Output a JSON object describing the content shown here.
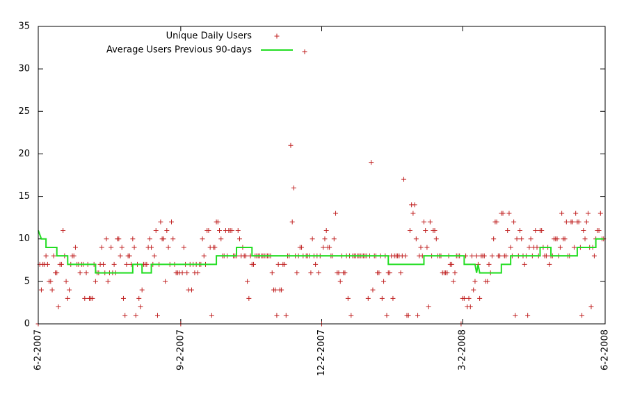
{
  "chart_data": {
    "type": "scatter",
    "xlim": [
      "2007-06-02",
      "2008-06-02"
    ],
    "xticks": [
      {
        "value": "2007-06-02",
        "label": "6-2-2007"
      },
      {
        "value": "2007-09-02",
        "label": "9-2-2007"
      },
      {
        "value": "2007-12-02",
        "label": "12-2-2007"
      },
      {
        "value": "2008-03-02",
        "label": "3-2-2008"
      },
      {
        "value": "2008-06-02",
        "label": "6-2-2008"
      }
    ],
    "ylim": [
      0,
      35
    ],
    "yticks": [
      0,
      5,
      10,
      15,
      20,
      25,
      30,
      35
    ],
    "grid": false,
    "legend_position": "top-left",
    "series": [
      {
        "name": "Unique Daily Users",
        "type": "scatter",
        "color": "#c02020",
        "x": [
          "2007-06-02",
          "2007-06-03",
          "2007-06-04",
          "2007-06-05",
          "2007-06-06",
          "2007-06-07",
          "2007-06-08",
          "2007-06-09",
          "2007-06-10",
          "2007-06-11",
          "2007-06-12",
          "2007-06-13",
          "2007-06-14",
          "2007-06-15",
          "2007-06-16",
          "2007-06-17",
          "2007-06-18",
          "2007-06-19",
          "2007-06-20",
          "2007-06-21",
          "2007-06-22",
          "2007-06-23",
          "2007-06-24",
          "2007-06-25",
          "2007-06-26",
          "2007-06-27",
          "2007-06-28",
          "2007-06-29",
          "2007-06-30",
          "2007-07-01",
          "2007-07-02",
          "2007-07-03",
          "2007-07-04",
          "2007-07-05",
          "2007-07-06",
          "2007-07-07",
          "2007-07-08",
          "2007-07-09",
          "2007-07-10",
          "2007-07-11",
          "2007-07-12",
          "2007-07-13",
          "2007-07-14",
          "2007-07-15",
          "2007-07-16",
          "2007-07-17",
          "2007-07-18",
          "2007-07-19",
          "2007-07-20",
          "2007-07-21",
          "2007-07-22",
          "2007-07-23",
          "2007-07-24",
          "2007-07-25",
          "2007-07-26",
          "2007-07-27",
          "2007-07-28",
          "2007-07-29",
          "2007-07-30",
          "2007-07-31",
          "2007-08-01",
          "2007-08-02",
          "2007-08-03",
          "2007-08-04",
          "2007-08-05",
          "2007-08-06",
          "2007-08-07",
          "2007-08-08",
          "2007-08-09",
          "2007-08-10",
          "2007-08-11",
          "2007-08-12",
          "2007-08-13",
          "2007-08-14",
          "2007-08-15",
          "2007-08-16",
          "2007-08-17",
          "2007-08-18",
          "2007-08-19",
          "2007-08-20",
          "2007-08-21",
          "2007-08-22",
          "2007-08-23",
          "2007-08-24",
          "2007-08-25",
          "2007-08-26",
          "2007-08-27",
          "2007-08-28",
          "2007-08-29",
          "2007-08-30",
          "2007-08-31",
          "2007-09-01",
          "2007-09-02",
          "2007-09-03",
          "2007-09-04",
          "2007-09-05",
          "2007-09-06",
          "2007-09-07",
          "2007-09-08",
          "2007-09-09",
          "2007-09-10",
          "2007-09-11",
          "2007-09-12",
          "2007-09-13",
          "2007-09-14",
          "2007-09-15",
          "2007-09-16",
          "2007-09-17",
          "2007-09-18",
          "2007-09-19",
          "2007-09-20",
          "2007-09-21",
          "2007-09-22",
          "2007-09-23",
          "2007-09-24",
          "2007-09-25",
          "2007-09-26",
          "2007-09-27",
          "2007-09-28",
          "2007-09-29",
          "2007-09-30",
          "2007-10-01",
          "2007-10-02",
          "2007-10-03",
          "2007-10-04",
          "2007-10-05",
          "2007-10-06",
          "2007-10-07",
          "2007-10-08",
          "2007-10-09",
          "2007-10-10",
          "2007-10-11",
          "2007-10-12",
          "2007-10-13",
          "2007-10-14",
          "2007-10-15",
          "2007-10-16",
          "2007-10-17",
          "2007-10-18",
          "2007-10-19",
          "2007-10-20",
          "2007-10-21",
          "2007-10-22",
          "2007-10-23",
          "2007-10-24",
          "2007-10-25",
          "2007-10-26",
          "2007-10-27",
          "2007-10-28",
          "2007-10-29",
          "2007-10-30",
          "2007-10-31",
          "2007-11-01",
          "2007-11-02",
          "2007-11-03",
          "2007-11-04",
          "2007-11-05",
          "2007-11-06",
          "2007-11-07",
          "2007-11-08",
          "2007-11-09",
          "2007-11-10",
          "2007-11-11",
          "2007-11-12",
          "2007-11-13",
          "2007-11-14",
          "2007-11-15",
          "2007-11-16",
          "2007-11-17",
          "2007-11-18",
          "2007-11-19",
          "2007-11-20",
          "2007-11-21",
          "2007-11-22",
          "2007-11-23",
          "2007-11-24",
          "2007-11-25",
          "2007-11-26",
          "2007-11-27",
          "2007-11-28",
          "2007-11-29",
          "2007-11-30",
          "2007-12-01",
          "2007-12-02",
          "2007-12-03",
          "2007-12-04",
          "2007-12-05",
          "2007-12-06",
          "2007-12-07",
          "2007-12-08",
          "2007-12-09",
          "2007-12-10",
          "2007-12-11",
          "2007-12-12",
          "2007-12-13",
          "2007-12-14",
          "2007-12-15",
          "2007-12-16",
          "2007-12-17",
          "2007-12-18",
          "2007-12-19",
          "2007-12-20",
          "2007-12-21",
          "2007-12-22",
          "2007-12-23",
          "2007-12-24",
          "2007-12-25",
          "2007-12-26",
          "2007-12-27",
          "2007-12-28",
          "2007-12-29",
          "2007-12-30",
          "2007-12-31",
          "2008-01-01",
          "2008-01-02",
          "2008-01-03",
          "2008-01-04",
          "2008-01-05",
          "2008-01-06",
          "2008-01-07",
          "2008-01-08",
          "2008-01-09",
          "2008-01-10",
          "2008-01-11",
          "2008-01-12",
          "2008-01-13",
          "2008-01-14",
          "2008-01-15",
          "2008-01-16",
          "2008-01-17",
          "2008-01-18",
          "2008-01-19",
          "2008-01-20",
          "2008-01-21",
          "2008-01-22",
          "2008-01-23",
          "2008-01-24",
          "2008-01-25",
          "2008-01-26",
          "2008-01-27",
          "2008-01-28",
          "2008-01-29",
          "2008-01-30",
          "2008-01-31",
          "2008-02-01",
          "2008-02-02",
          "2008-02-03",
          "2008-02-04",
          "2008-02-05",
          "2008-02-06",
          "2008-02-07",
          "2008-02-08",
          "2008-02-09",
          "2008-02-10",
          "2008-02-11",
          "2008-02-12",
          "2008-02-13",
          "2008-02-14",
          "2008-02-15",
          "2008-02-16",
          "2008-02-17",
          "2008-02-18",
          "2008-02-19",
          "2008-02-20",
          "2008-02-21",
          "2008-02-22",
          "2008-02-23",
          "2008-02-24",
          "2008-02-25",
          "2008-02-26",
          "2008-02-27",
          "2008-02-28",
          "2008-02-29",
          "2008-03-01",
          "2008-03-02",
          "2008-03-03",
          "2008-03-04",
          "2008-03-05",
          "2008-03-06",
          "2008-03-07",
          "2008-03-08",
          "2008-03-09",
          "2008-03-10",
          "2008-03-11",
          "2008-03-12",
          "2008-03-13",
          "2008-03-14",
          "2008-03-15",
          "2008-03-16",
          "2008-03-17",
          "2008-03-18",
          "2008-03-19",
          "2008-03-20",
          "2008-03-21",
          "2008-03-22",
          "2008-03-23",
          "2008-03-24",
          "2008-03-25",
          "2008-03-26",
          "2008-03-27",
          "2008-03-28",
          "2008-03-29",
          "2008-03-30",
          "2008-03-31",
          "2008-04-01",
          "2008-04-02",
          "2008-04-03",
          "2008-04-04",
          "2008-04-05",
          "2008-04-06",
          "2008-04-07",
          "2008-04-08",
          "2008-04-09",
          "2008-04-10",
          "2008-04-11",
          "2008-04-12",
          "2008-04-13",
          "2008-04-14",
          "2008-04-15",
          "2008-04-16",
          "2008-04-17",
          "2008-04-18",
          "2008-04-19",
          "2008-04-20",
          "2008-04-21",
          "2008-04-22",
          "2008-04-23",
          "2008-04-24",
          "2008-04-25",
          "2008-04-26",
          "2008-04-27",
          "2008-04-28",
          "2008-04-29",
          "2008-04-30",
          "2008-05-01",
          "2008-05-02",
          "2008-05-03",
          "2008-05-04",
          "2008-05-05",
          "2008-05-06",
          "2008-05-07",
          "2008-05-08",
          "2008-05-09",
          "2008-05-10",
          "2008-05-11",
          "2008-05-12",
          "2008-05-13",
          "2008-05-14",
          "2008-05-15",
          "2008-05-16",
          "2008-05-17",
          "2008-05-18",
          "2008-05-19",
          "2008-05-20",
          "2008-05-21",
          "2008-05-22",
          "2008-05-23",
          "2008-05-24",
          "2008-05-25",
          "2008-05-26",
          "2008-05-27",
          "2008-05-28",
          "2008-05-29",
          "2008-05-30",
          "2008-05-31",
          "2008-06-01"
        ],
        "values": [
          0,
          7,
          4,
          7,
          7,
          8,
          7,
          5,
          5,
          4,
          8,
          6,
          6,
          2,
          7,
          7,
          11,
          8,
          5,
          3,
          4,
          7,
          8,
          8,
          9,
          7,
          7,
          6,
          7,
          7,
          3,
          6,
          7,
          3,
          3,
          3,
          7,
          5,
          6,
          6,
          7,
          9,
          7,
          6,
          10,
          5,
          6,
          9,
          6,
          7,
          6,
          10,
          10,
          8,
          9,
          3,
          1,
          7,
          8,
          8,
          7,
          10,
          9,
          1,
          7,
          3,
          2,
          4,
          7,
          7,
          7,
          9,
          10,
          9,
          7,
          8,
          11,
          1,
          7,
          12,
          10,
          10,
          5,
          11,
          9,
          7,
          12,
          10,
          7,
          6,
          6,
          6,
          0,
          6,
          9,
          7,
          6,
          4,
          7,
          4,
          7,
          6,
          7,
          6,
          7,
          7,
          10,
          8,
          7,
          11,
          11,
          9,
          1,
          9,
          9,
          12,
          12,
          11,
          10,
          8,
          8,
          11,
          8,
          11,
          11,
          11,
          8,
          8,
          8,
          11,
          10,
          8,
          9,
          8,
          8,
          5,
          3,
          8,
          7,
          7,
          8,
          8,
          8,
          8,
          8,
          8,
          8,
          8,
          8,
          8,
          8,
          6,
          4,
          4,
          1,
          7,
          4,
          4,
          7,
          7,
          1,
          8,
          8,
          21,
          12,
          16,
          8,
          6,
          8,
          9,
          9,
          8,
          32,
          8,
          8,
          8,
          6,
          10,
          8,
          7,
          8,
          6,
          8,
          0,
          9,
          10,
          11,
          9,
          9,
          8,
          8,
          10,
          13,
          6,
          6,
          5,
          8,
          6,
          6,
          8,
          3,
          8,
          1,
          8,
          8,
          8,
          8,
          8,
          8,
          8,
          8,
          8,
          8,
          3,
          8,
          19,
          4,
          8,
          8,
          6,
          6,
          8,
          3,
          5,
          8,
          1,
          6,
          6,
          8,
          3,
          8,
          8,
          8,
          8,
          6,
          8,
          17,
          8,
          1,
          1,
          11,
          14,
          13,
          14,
          10,
          1,
          8,
          9,
          8,
          12,
          11,
          9,
          2,
          12,
          8,
          11,
          11,
          10,
          8,
          8,
          8,
          6,
          6,
          6,
          6,
          8,
          7,
          7,
          5,
          6,
          8,
          8,
          8,
          0,
          3,
          3,
          8,
          2,
          3,
          2,
          8,
          4,
          5,
          8,
          7,
          3,
          8,
          8,
          8,
          5,
          5,
          7,
          6,
          8,
          10,
          12,
          12,
          8,
          8,
          13,
          13,
          8,
          8,
          11,
          13,
          9,
          8,
          12,
          1,
          10,
          8,
          11,
          10,
          8,
          7,
          8,
          1,
          9,
          10,
          8,
          9,
          11,
          9,
          8,
          11,
          11,
          9,
          8,
          8,
          9,
          7,
          8,
          8,
          10,
          10,
          10,
          8,
          9,
          13,
          10,
          10,
          12,
          8,
          8,
          12,
          12,
          9,
          13,
          12,
          12,
          9,
          1,
          11,
          10,
          12,
          13,
          9,
          2,
          9,
          8,
          10,
          11,
          11,
          13,
          10,
          10
        ]
      },
      {
        "name": "Average Users Previous 90-days",
        "type": "line",
        "color": "#22dd22",
        "x": [
          "2007-06-02",
          "2007-06-04",
          "2007-06-07",
          "2007-06-07",
          "2007-06-14",
          "2007-06-14",
          "2007-06-21",
          "2007-06-21",
          "2007-07-09",
          "2007-07-09",
          "2007-08-02",
          "2007-08-02",
          "2007-08-08",
          "2007-08-08",
          "2007-08-14",
          "2007-08-14",
          "2007-09-25",
          "2007-09-25",
          "2007-10-08",
          "2007-10-08",
          "2007-10-18",
          "2007-10-18",
          "2008-01-14",
          "2008-01-14",
          "2008-02-06",
          "2008-02-06",
          "2008-03-03",
          "2008-03-03",
          "2008-03-10",
          "2008-03-11",
          "2008-03-12",
          "2008-03-13",
          "2008-03-27",
          "2008-03-27",
          "2008-04-02",
          "2008-04-02",
          "2008-04-21",
          "2008-04-21",
          "2008-04-28",
          "2008-04-28",
          "2008-05-15",
          "2008-05-15",
          "2008-05-27",
          "2008-05-27",
          "2008-06-01"
        ],
        "values": [
          11,
          10,
          10,
          9,
          9,
          8,
          8,
          7,
          7,
          6,
          6,
          7,
          7,
          6,
          6,
          7,
          7,
          8,
          8,
          9,
          9,
          8,
          8,
          7,
          7,
          8,
          8,
          7,
          7,
          6,
          7,
          6,
          6,
          7,
          7,
          8,
          8,
          9,
          9,
          8,
          8,
          9,
          9,
          10,
          10
        ]
      }
    ]
  }
}
